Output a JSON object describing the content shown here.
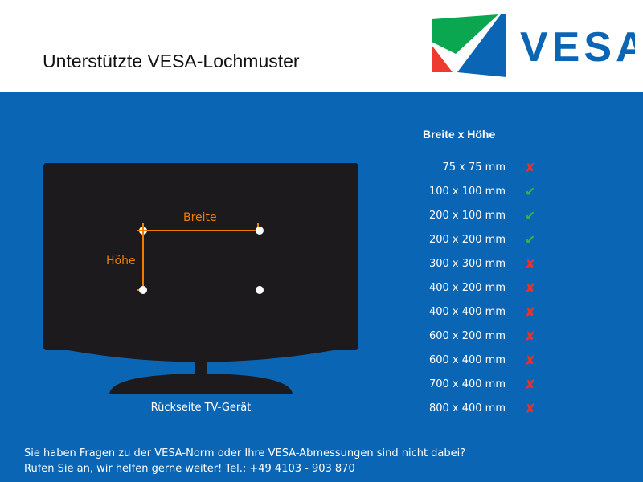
{
  "header": {
    "title": "Unterstützte VESA-Lochmuster",
    "logo_text": "VESA"
  },
  "diagram": {
    "width_label": "Breite",
    "height_label": "Höhe",
    "caption": "Rückseite TV-Gerät"
  },
  "list": {
    "heading": "Breite x Höhe",
    "items": [
      {
        "size": "75 x 75 mm",
        "supported": false,
        "icon": "cross-icon",
        "mark": "✘"
      },
      {
        "size": "100 x 100 mm",
        "supported": true,
        "icon": "check-icon",
        "mark": "✔"
      },
      {
        "size": "200 x 100 mm",
        "supported": true,
        "icon": "check-icon",
        "mark": "✔"
      },
      {
        "size": "200 x 200 mm",
        "supported": true,
        "icon": "check-icon",
        "mark": "✔"
      },
      {
        "size": "300 x 300 mm",
        "supported": false,
        "icon": "cross-icon",
        "mark": "✘"
      },
      {
        "size": "400 x 200 mm",
        "supported": false,
        "icon": "cross-icon",
        "mark": "✘"
      },
      {
        "size": "400 x 400 mm",
        "supported": false,
        "icon": "cross-icon",
        "mark": "✘"
      },
      {
        "size": "600 x 200 mm",
        "supported": false,
        "icon": "cross-icon",
        "mark": "✘"
      },
      {
        "size": "600 x 400 mm",
        "supported": false,
        "icon": "cross-icon",
        "mark": "✘"
      },
      {
        "size": "700 x 400 mm",
        "supported": false,
        "icon": "cross-icon",
        "mark": "✘"
      },
      {
        "size": "800 x 400 mm",
        "supported": false,
        "icon": "cross-icon",
        "mark": "✘"
      }
    ]
  },
  "footer": {
    "line1": "Sie haben Fragen zu der VESA-Norm oder Ihre VESA-Abmessungen sind nicht dabei?",
    "line2": "Rufen Sie an, wir helfen gerne weiter! Tel.: +49 4103 - 903 870"
  },
  "colors": {
    "background": "#0a66b5",
    "accent": "#f07d00",
    "yes": "#31b445",
    "no": "#e8332c"
  }
}
